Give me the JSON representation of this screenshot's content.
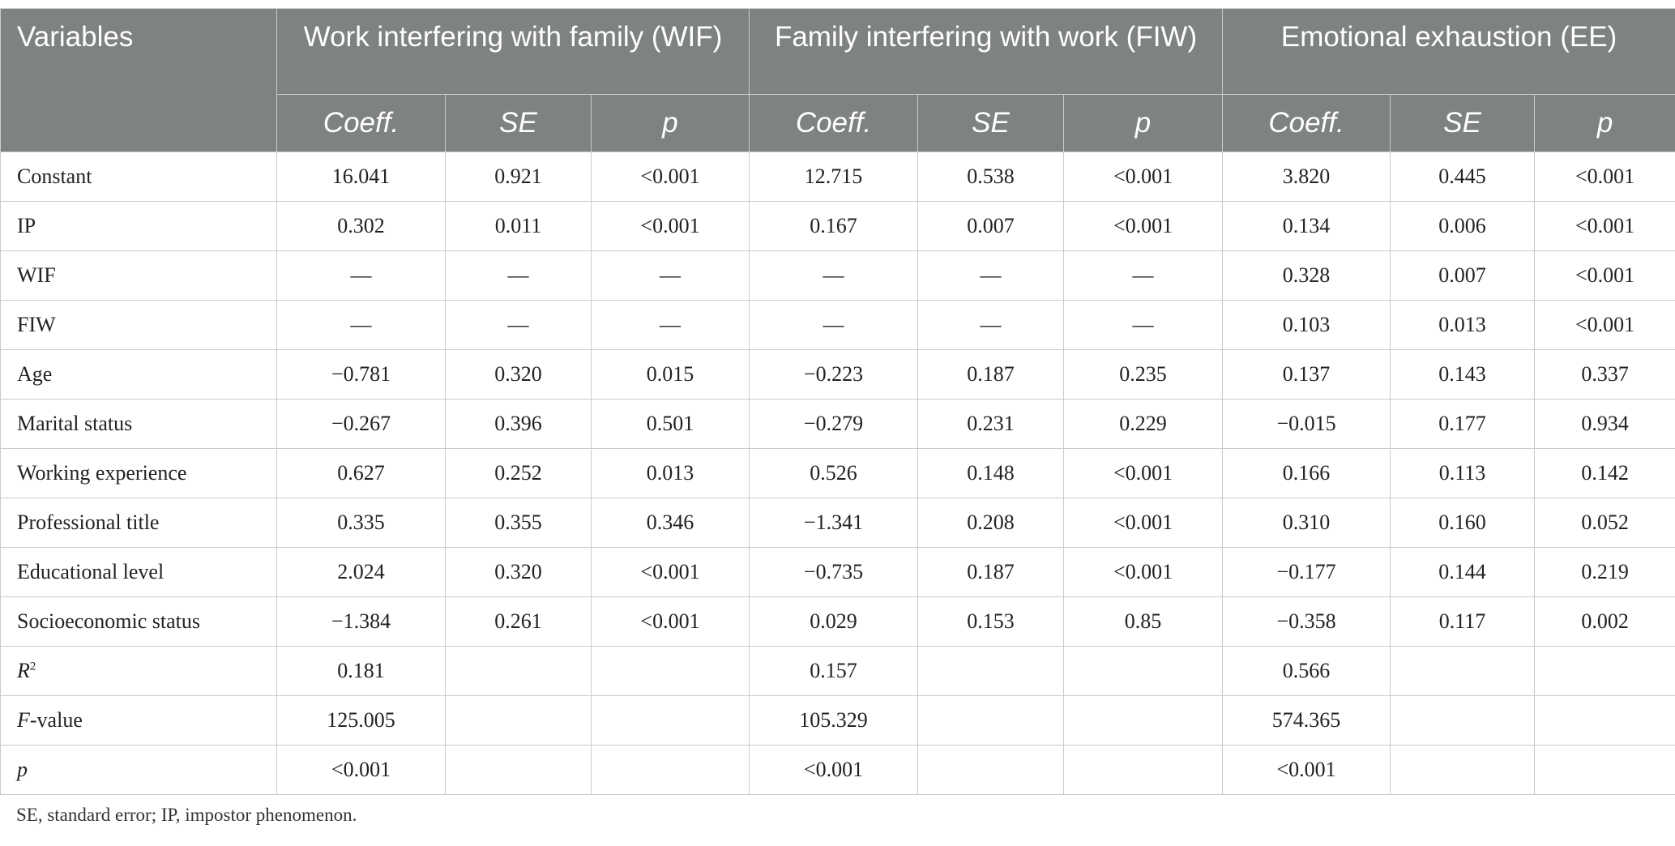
{
  "header": {
    "variables_label": "Variables",
    "groups": [
      "Work interfering with family (WIF)",
      "Family interfering with work (FIW)",
      "Emotional exhaustion (EE)"
    ],
    "subheaders": [
      "Coeff.",
      "SE",
      "p"
    ]
  },
  "rows": [
    {
      "label": "Constant",
      "cells": [
        "16.041",
        "0.921",
        "<0.001",
        "12.715",
        "0.538",
        "<0.001",
        "3.820",
        "0.445",
        "<0.001"
      ]
    },
    {
      "label": "IP",
      "cells": [
        "0.302",
        "0.011",
        "<0.001",
        "0.167",
        "0.007",
        "<0.001",
        "0.134",
        "0.006",
        "<0.001"
      ]
    },
    {
      "label": "WIF",
      "cells": [
        "—",
        "—",
        "—",
        "—",
        "—",
        "—",
        "0.328",
        "0.007",
        "<0.001"
      ]
    },
    {
      "label": "FIW",
      "cells": [
        "—",
        "—",
        "—",
        "—",
        "—",
        "—",
        "0.103",
        "0.013",
        "<0.001"
      ]
    },
    {
      "label": "Age",
      "cells": [
        "−0.781",
        "0.320",
        "0.015",
        "−0.223",
        "0.187",
        "0.235",
        "0.137",
        "0.143",
        "0.337"
      ]
    },
    {
      "label": "Marital status",
      "cells": [
        "−0.267",
        "0.396",
        "0.501",
        "−0.279",
        "0.231",
        "0.229",
        "−0.015",
        "0.177",
        "0.934"
      ]
    },
    {
      "label": "Working experience",
      "cells": [
        "0.627",
        "0.252",
        "0.013",
        "0.526",
        "0.148",
        "<0.001",
        "0.166",
        "0.113",
        "0.142"
      ]
    },
    {
      "label": "Professional title",
      "cells": [
        "0.335",
        "0.355",
        "0.346",
        "−1.341",
        "0.208",
        "<0.001",
        "0.310",
        "0.160",
        "0.052"
      ]
    },
    {
      "label": "Educational level",
      "cells": [
        "2.024",
        "0.320",
        "<0.001",
        "−0.735",
        "0.187",
        "<0.001",
        "−0.177",
        "0.144",
        "0.219"
      ]
    },
    {
      "label": "Socioeconomic status",
      "cells": [
        "−1.384",
        "0.261",
        "<0.001",
        "0.029",
        "0.153",
        "0.85",
        "−0.358",
        "0.117",
        "0.002"
      ]
    }
  ],
  "stats": {
    "r2": {
      "label_main": "R",
      "label_sup": "2",
      "values": [
        "0.181",
        "0.157",
        "0.566"
      ]
    },
    "f": {
      "label_italic": "F",
      "label_rest": "-value",
      "values": [
        "125.005",
        "105.329",
        "574.365"
      ]
    },
    "p": {
      "label_italic": "p",
      "values": [
        "<0.001",
        "<0.001",
        "<0.001"
      ]
    }
  },
  "footnote": "SE, standard error; IP, impostor phenomenon."
}
